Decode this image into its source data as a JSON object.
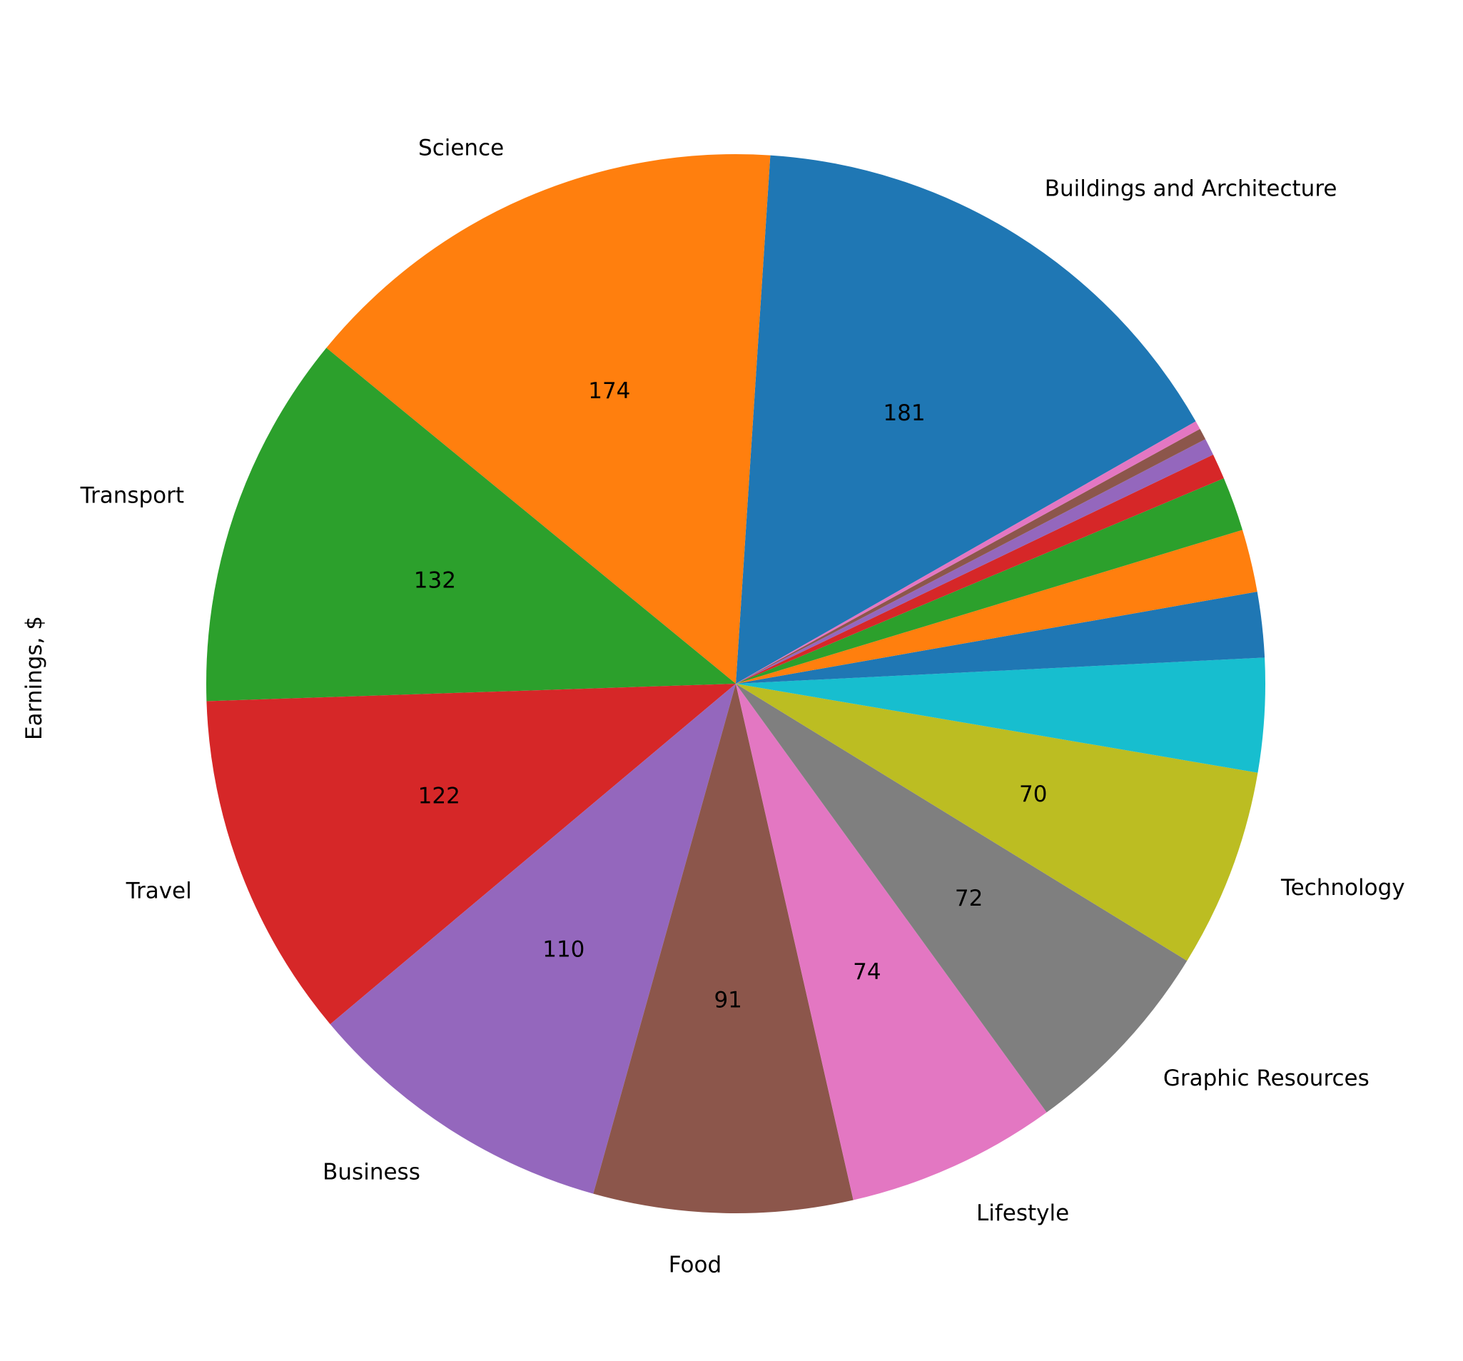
{
  "chart_data": {
    "type": "pie",
    "title": "",
    "ylabel": "Earnings, $",
    "counterclockwise": true,
    "slices": [
      {
        "label": "Buildings and Architecture",
        "value": 181,
        "value_label": "181",
        "color": "#1f77b4"
      },
      {
        "label": "Science",
        "value": 174,
        "value_label": "174",
        "color": "#ff7f0e"
      },
      {
        "label": "Transport",
        "value": 132,
        "value_label": "132",
        "color": "#2ca02c"
      },
      {
        "label": "Travel",
        "value": 122,
        "value_label": "122",
        "color": "#d62728"
      },
      {
        "label": "Business",
        "value": 110,
        "value_label": "110",
        "color": "#9467bd"
      },
      {
        "label": "Food",
        "value": 91,
        "value_label": "91",
        "color": "#8c564b"
      },
      {
        "label": "Lifestyle",
        "value": 74,
        "value_label": "74",
        "color": "#e377c2"
      },
      {
        "label": "Graphic Resources",
        "value": 72,
        "value_label": "72",
        "color": "#7f7f7f"
      },
      {
        "label": "Technology",
        "value": 70,
        "value_label": "70",
        "color": "#bcbd22"
      },
      {
        "label": "",
        "value": 40,
        "value_label": "",
        "color": "#17becf"
      },
      {
        "label": "",
        "value": 23,
        "value_label": "",
        "color": "#1f77b4"
      },
      {
        "label": "",
        "value": 22,
        "value_label": "",
        "color": "#ff7f0e"
      },
      {
        "label": "",
        "value": 19,
        "value_label": "",
        "color": "#2ca02c"
      },
      {
        "label": "",
        "value": 9,
        "value_label": "",
        "color": "#d62728"
      },
      {
        "label": "",
        "value": 6,
        "value_label": "",
        "color": "#9467bd"
      },
      {
        "label": "",
        "value": 4,
        "value_label": "",
        "color": "#8c564b"
      },
      {
        "label": "",
        "value": 3,
        "value_label": "",
        "color": "#e377c2"
      }
    ]
  }
}
